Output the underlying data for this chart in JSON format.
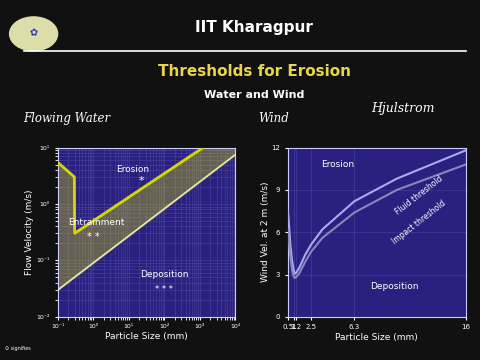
{
  "bg_color": "#2a2080",
  "plot_bg": "#2a2080",
  "fig_bg": "#111111",
  "title1": "IIT Kharagpur",
  "title2": "Thresholds for Erosion",
  "subtitle": "Water and Wind",
  "left_label": "Flowing Water",
  "right_label": "Wind",
  "hjulstrom_label": "Hjulstrom",
  "left_xlabel": "Particle Size (mm)",
  "left_ylabel": "Flow Velocity (m/s)",
  "right_xlabel": "Particle Size (mm)",
  "right_ylabel": "Wind Vel. at 2 m (m/s)",
  "left_erosion": "Erosion",
  "left_entrainment": "Entrainment",
  "left_deposition": "Deposition",
  "right_erosion": "Erosion",
  "right_fluid": "Fluid threshold",
  "right_impact": "Impact threshold",
  "right_deposition": "Deposition",
  "white": "#ffffff",
  "yellow": "#e8d44d",
  "light_blue": "#ccccff",
  "grid_color": "#5555aa",
  "curve_yellow_green": "#d4d800",
  "curve_light": "#e8e8b0",
  "wind_line1": "#aaaaee",
  "wind_line2": "#8888bb",
  "taskbar_bg": "#404040"
}
